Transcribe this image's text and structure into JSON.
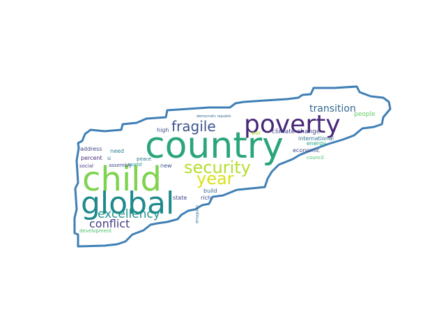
{
  "cloud": {
    "outline_color": "#3f7fb5",
    "background": "#ffffff",
    "words": [
      {
        "text": "country",
        "color": "#2aa57a",
        "weight": 1.0
      },
      {
        "text": "child",
        "color": "#7ed34f",
        "weight": 0.9
      },
      {
        "text": "poverty",
        "color": "#482878",
        "weight": 0.75
      },
      {
        "text": "global",
        "color": "#1f8a8c",
        "weight": 0.72
      },
      {
        "text": "security",
        "color": "#b5de2b",
        "weight": 0.55
      },
      {
        "text": "year",
        "color": "#d8e219",
        "weight": 0.5
      },
      {
        "text": "fragile",
        "color": "#3b528b",
        "weight": 0.45
      },
      {
        "text": "excellency",
        "color": "#21918c",
        "weight": 0.4
      },
      {
        "text": "conflict",
        "color": "#433e85",
        "weight": 0.38
      },
      {
        "text": "transition",
        "color": "#31688e",
        "weight": 0.33
      },
      {
        "text": "climate change",
        "color": "#414487",
        "weight": 0.22
      },
      {
        "text": "international",
        "color": "#2c728e",
        "weight": 0.2
      },
      {
        "text": "people",
        "color": "#5ec962",
        "weight": 0.2
      },
      {
        "text": "economic",
        "color": "#3e4a89",
        "weight": 0.2
      },
      {
        "text": "energy",
        "color": "#20a386",
        "weight": 0.18
      },
      {
        "text": "council",
        "color": "#4ac16d",
        "weight": 0.17
      },
      {
        "text": "high",
        "color": "#3b528b",
        "weight": 0.18
      },
      {
        "text": "address",
        "color": "#414487",
        "weight": 0.18
      },
      {
        "text": "need",
        "color": "#277f8e",
        "weight": 0.18
      },
      {
        "text": "percent",
        "color": "#482878",
        "weight": 0.18
      },
      {
        "text": "u",
        "color": "#31688e",
        "weight": 0.17
      },
      {
        "text": "assembly",
        "color": "#3e4a89",
        "weight": 0.17
      },
      {
        "text": "peace",
        "color": "#2c728e",
        "weight": 0.17
      },
      {
        "text": "social",
        "color": "#433e85",
        "weight": 0.17
      },
      {
        "text": "world",
        "color": "#21918c",
        "weight": 0.17
      },
      {
        "text": "new",
        "color": "#3b528b",
        "weight": 0.18
      },
      {
        "text": "build",
        "color": "#31688e",
        "weight": 0.18
      },
      {
        "text": "state",
        "color": "#414487",
        "weight": 0.18
      },
      {
        "text": "rich",
        "color": "#3e4a89",
        "weight": 0.18
      },
      {
        "text": "continue",
        "color": "#2c728e",
        "weight": 0.17
      },
      {
        "text": "development",
        "color": "#4ac16d",
        "weight": 0.18
      },
      {
        "text": "democratic republic",
        "color": "#31688e",
        "weight": 0.12
      },
      {
        "text": "war",
        "color": "#b5de2b",
        "weight": 0.16
      }
    ]
  }
}
